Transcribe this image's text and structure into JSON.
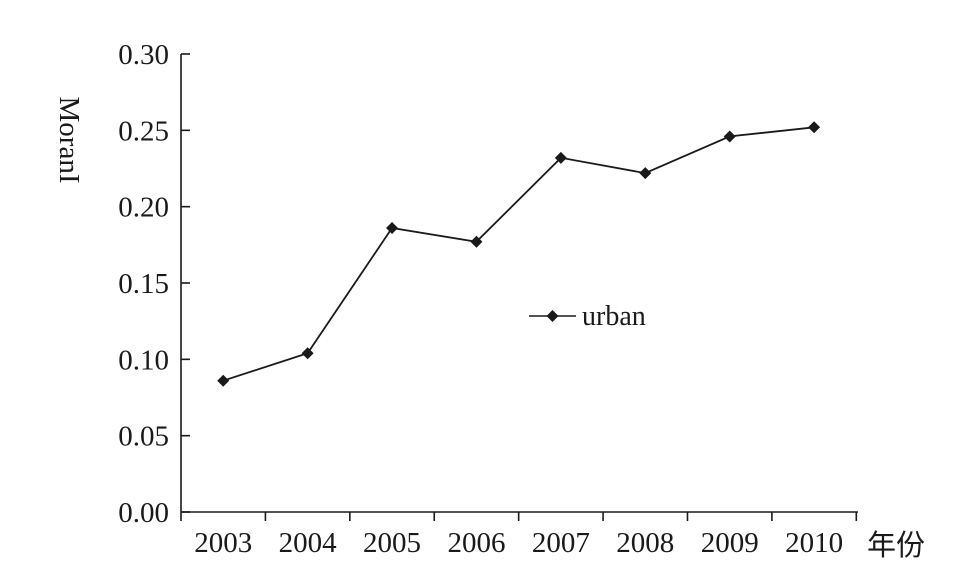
{
  "chart_data": {
    "type": "line",
    "title": "",
    "xlabel": "年份",
    "ylabel": "MoranI",
    "categories": [
      "2003",
      "2004",
      "2005",
      "2006",
      "2007",
      "2008",
      "2009",
      "2010"
    ],
    "series": [
      {
        "name": "urban",
        "values": [
          0.086,
          0.104,
          0.186,
          0.177,
          0.232,
          0.222,
          0.246,
          0.252
        ],
        "marker": "diamond",
        "color": "#1a1a1a"
      }
    ],
    "ylim": [
      0,
      0.3
    ],
    "yticks": [
      0.0,
      0.05,
      0.1,
      0.15,
      0.2,
      0.25,
      0.3
    ],
    "ytick_labels": [
      "0.00",
      "0.05",
      "0.10",
      "0.15",
      "0.20",
      "0.25",
      "0.30"
    ],
    "grid": false,
    "legend_position": "center-right"
  }
}
